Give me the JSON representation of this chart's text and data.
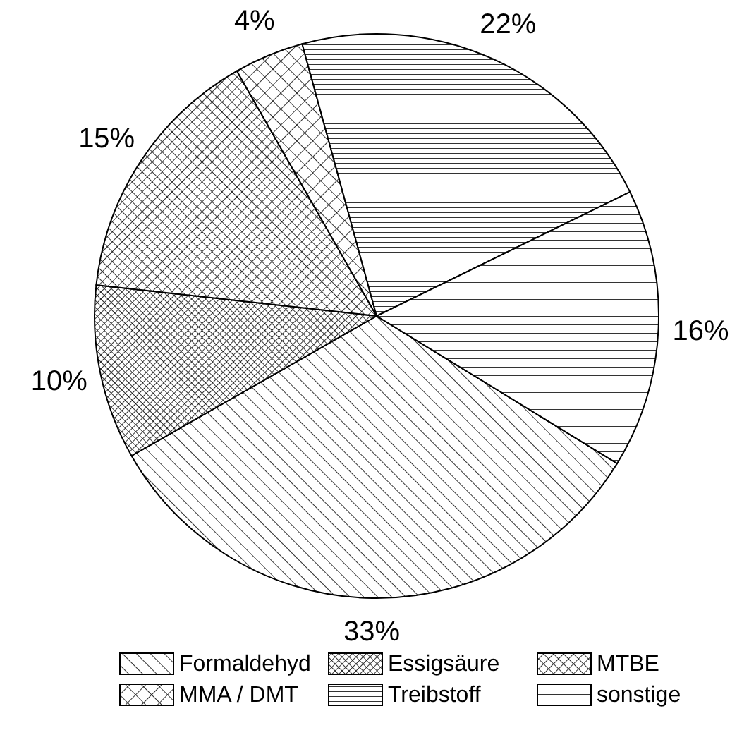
{
  "chart_data": {
    "type": "pie",
    "categories": [
      "Formaldehyd",
      "Essigsäure",
      "MTBE",
      "MMA / DMT",
      "Treibstoff",
      "sonstige"
    ],
    "values": [
      33,
      10,
      15,
      4,
      22,
      16
    ],
    "colors": [
      "#000000",
      "#000000",
      "#000000",
      "#000000",
      "#000000",
      "#000000"
    ],
    "value_labels": [
      "33%",
      "10%",
      "15%",
      "4%",
      "22%",
      "16%"
    ],
    "legend": "bottom"
  }
}
